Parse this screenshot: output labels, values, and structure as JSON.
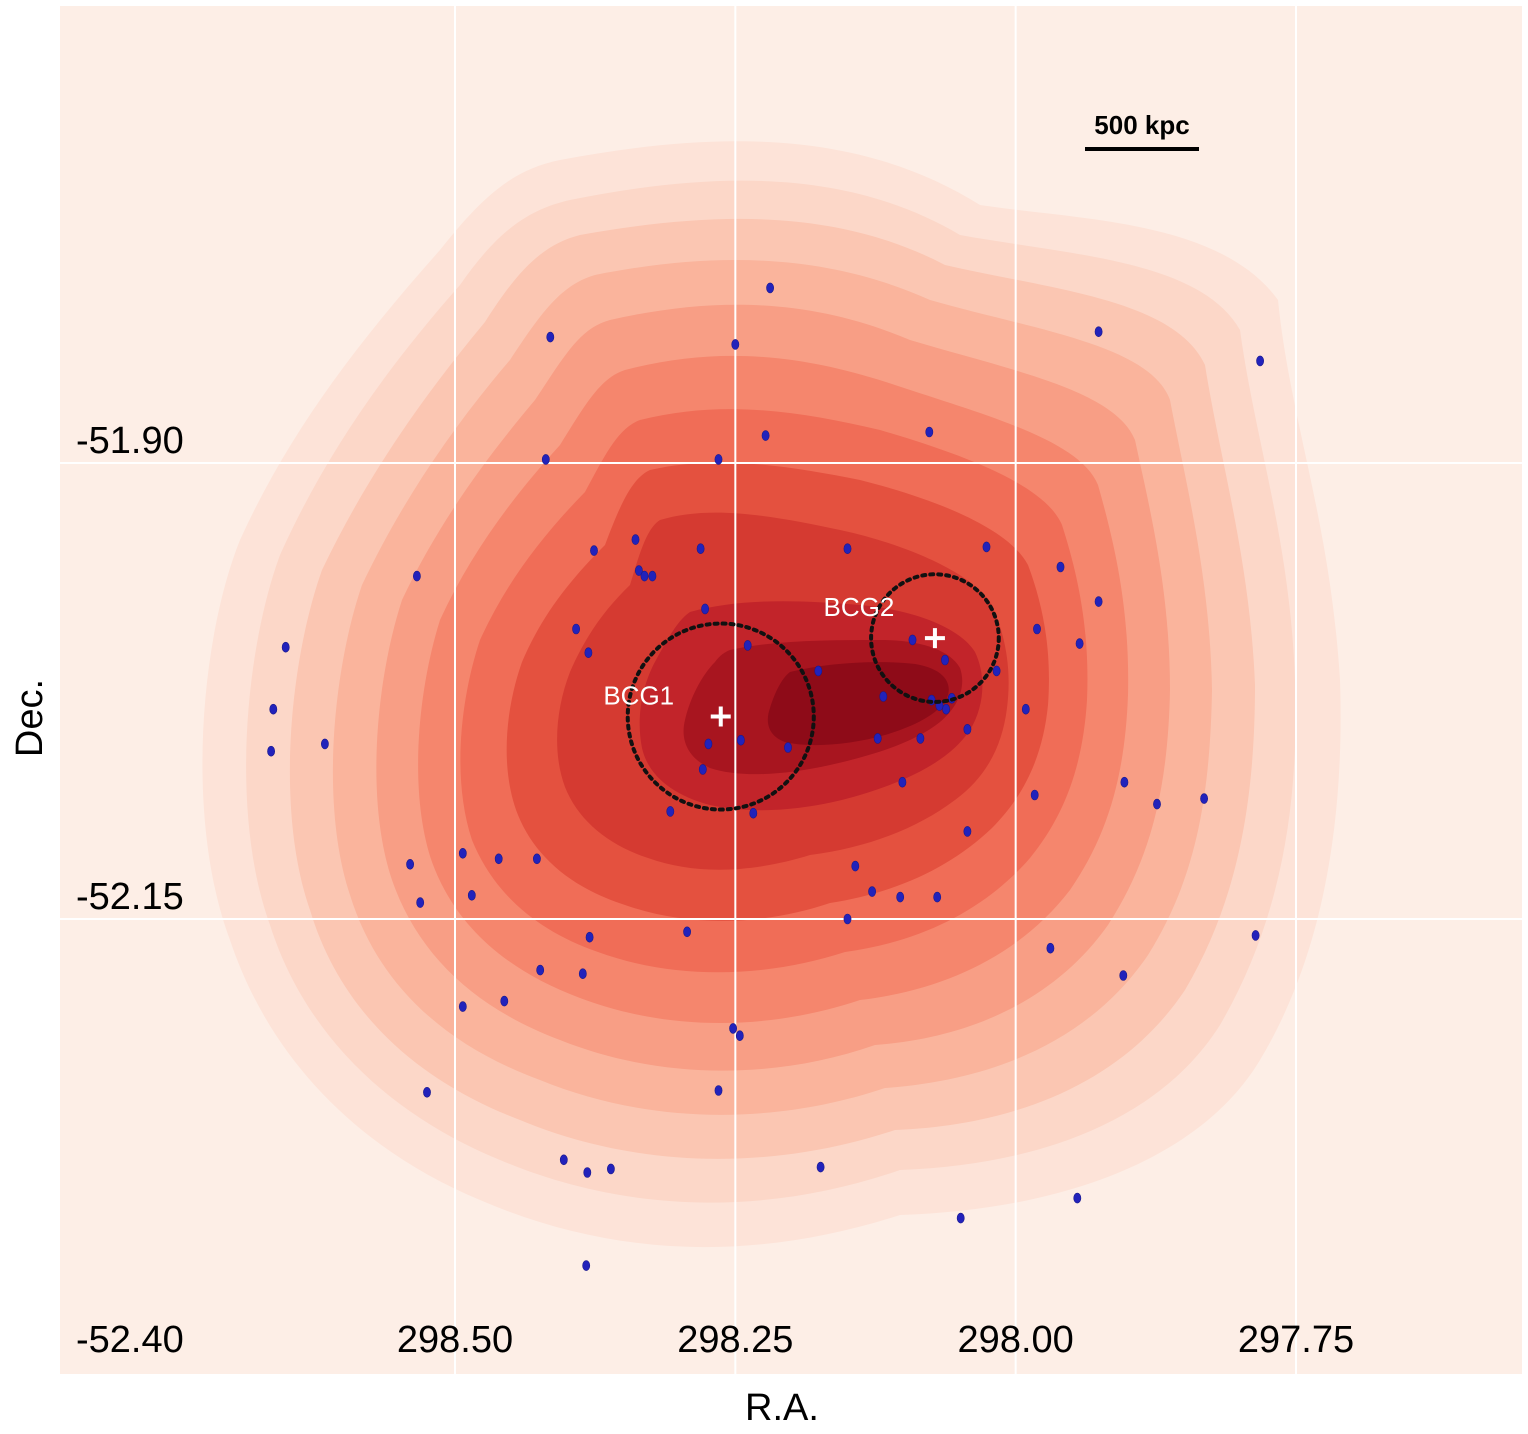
{
  "chart_data": {
    "type": "scatter",
    "title": "",
    "xlabel": "R.A.",
    "ylabel": "Dec.",
    "x_reversed": true,
    "xlim": [
      298.85,
      297.55
    ],
    "ylim": [
      -52.4,
      -51.65
    ],
    "x_ticks": [
      298.5,
      298.25,
      298.0,
      297.75
    ],
    "x_tick_labels": [
      "298.50",
      "298.25",
      "298.00",
      "297.75"
    ],
    "y_ticks": [
      -51.9,
      -52.15,
      -52.4
    ],
    "y_tick_labels": [
      "-51.90",
      "-52.15",
      "-52.40"
    ],
    "grid": true,
    "density": {
      "description": "galaxy number density (KDE filled contours)",
      "colormap": [
        "#fde9e1",
        "#fcd7c8",
        "#fbc2ad",
        "#f9a890",
        "#f78c75",
        "#f16a55",
        "#e44a3c",
        "#d43432",
        "#bf2027",
        "#a8141f",
        "#8e0b18"
      ]
    },
    "scale_bar": {
      "label": "500 kpc"
    },
    "bcgs": [
      {
        "name": "BCG1",
        "ra": 298.263,
        "dec": -52.039,
        "circle_radius_deg": 0.051
      },
      {
        "name": "BCG2",
        "ra": 298.072,
        "dec": -51.996,
        "circle_radius_deg": 0.035
      }
    ],
    "galaxies": {
      "name": "cluster members",
      "color": "#2222bb",
      "points": [
        [
          298.219,
          -51.804
        ],
        [
          298.415,
          -51.831
        ],
        [
          298.25,
          -51.835
        ],
        [
          297.926,
          -51.828
        ],
        [
          297.782,
          -51.844
        ],
        [
          298.077,
          -51.883
        ],
        [
          298.223,
          -51.885
        ],
        [
          298.265,
          -51.898
        ],
        [
          298.419,
          -51.898
        ],
        [
          298.339,
          -51.942
        ],
        [
          298.376,
          -51.948
        ],
        [
          298.281,
          -51.947
        ],
        [
          298.336,
          -51.959
        ],
        [
          298.331,
          -51.962
        ],
        [
          298.324,
          -51.962
        ],
        [
          298.15,
          -51.947
        ],
        [
          298.026,
          -51.946
        ],
        [
          297.96,
          -51.957
        ],
        [
          298.534,
          -51.962
        ],
        [
          297.926,
          -51.976
        ],
        [
          298.277,
          -51.98
        ],
        [
          298.392,
          -51.991
        ],
        [
          298.381,
          -52.004
        ],
        [
          297.981,
          -51.991
        ],
        [
          297.943,
          -51.999
        ],
        [
          298.092,
          -51.997
        ],
        [
          298.239,
          -52.0
        ],
        [
          298.651,
          -52.001
        ],
        [
          298.176,
          -52.014
        ],
        [
          298.063,
          -52.008
        ],
        [
          298.017,
          -52.014
        ],
        [
          298.662,
          -52.035
        ],
        [
          298.118,
          -52.028
        ],
        [
          298.057,
          -52.029
        ],
        [
          298.075,
          -52.03
        ],
        [
          298.062,
          -52.035
        ],
        [
          298.068,
          -52.033
        ],
        [
          297.991,
          -52.035
        ],
        [
          298.616,
          -52.054
        ],
        [
          298.245,
          -52.052
        ],
        [
          298.274,
          -52.054
        ],
        [
          298.203,
          -52.056
        ],
        [
          298.123,
          -52.051
        ],
        [
          298.085,
          -52.051
        ],
        [
          298.043,
          -52.046
        ],
        [
          298.664,
          -52.058
        ],
        [
          298.279,
          -52.068
        ],
        [
          298.101,
          -52.075
        ],
        [
          297.903,
          -52.075
        ],
        [
          297.983,
          -52.082
        ],
        [
          297.874,
          -52.087
        ],
        [
          297.832,
          -52.084
        ],
        [
          298.308,
          -52.091
        ],
        [
          298.234,
          -52.092
        ],
        [
          298.043,
          -52.102
        ],
        [
          298.493,
          -52.114
        ],
        [
          298.461,
          -52.117
        ],
        [
          298.427,
          -52.117
        ],
        [
          298.54,
          -52.12
        ],
        [
          298.143,
          -52.121
        ],
        [
          298.128,
          -52.135
        ],
        [
          298.485,
          -52.137
        ],
        [
          298.531,
          -52.141
        ],
        [
          298.103,
          -52.138
        ],
        [
          298.07,
          -52.138
        ],
        [
          298.15,
          -52.15
        ],
        [
          298.293,
          -52.157
        ],
        [
          298.38,
          -52.16
        ],
        [
          297.969,
          -52.166
        ],
        [
          297.786,
          -52.159
        ],
        [
          298.424,
          -52.178
        ],
        [
          298.386,
          -52.18
        ],
        [
          298.493,
          -52.198
        ],
        [
          298.456,
          -52.195
        ],
        [
          297.904,
          -52.181
        ],
        [
          298.252,
          -52.21
        ],
        [
          298.246,
          -52.214
        ],
        [
          298.525,
          -52.245
        ],
        [
          298.265,
          -52.244
        ],
        [
          298.403,
          -52.282
        ],
        [
          298.382,
          -52.289
        ],
        [
          298.361,
          -52.287
        ],
        [
          298.174,
          -52.286
        ],
        [
          297.945,
          -52.303
        ],
        [
          298.049,
          -52.314
        ],
        [
          298.383,
          -52.34
        ]
      ]
    }
  }
}
